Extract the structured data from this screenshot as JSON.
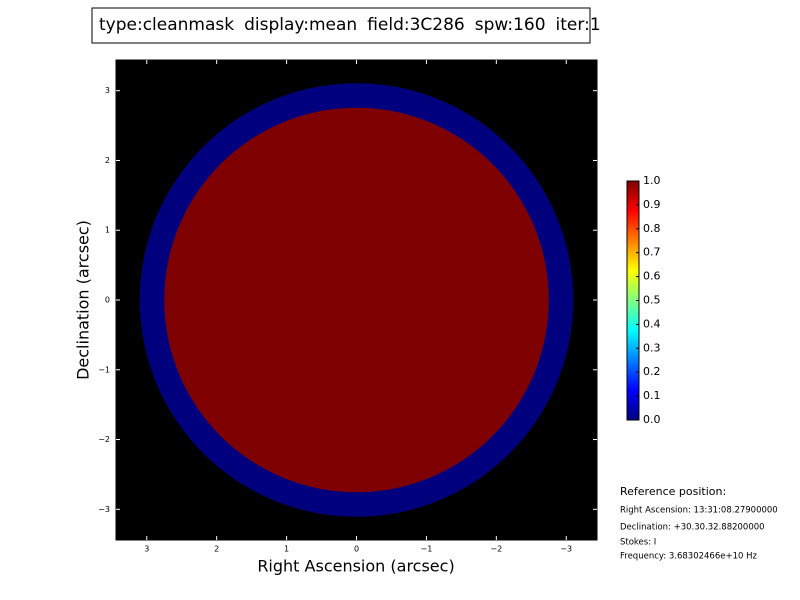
{
  "chart_data": {
    "type": "image",
    "title_parts": [
      {
        "text": "type:cleanmask",
        "color": "#000000"
      },
      {
        "text": "display:mean",
        "color": "#ff0000"
      },
      {
        "text": "field:3C286",
        "color": "#000000"
      },
      {
        "text": "spw:160",
        "color": "#000000"
      },
      {
        "text": "iter:1",
        "color": "#000000"
      }
    ],
    "xlabel": "Right Ascension (arcsec)",
    "ylabel": "Declination (arcsec)",
    "xlim": [
      3.44,
      -3.44
    ],
    "ylim": [
      -3.44,
      3.44
    ],
    "xticks": [
      3,
      2,
      1,
      0,
      {
        "value": -1,
        "label": "−1"
      },
      {
        "value": -2,
        "label": "−2"
      },
      {
        "value": -3,
        "label": "−3"
      }
    ],
    "yticks": [
      {
        "value": -3,
        "label": "−3"
      },
      {
        "value": -2,
        "label": "−2"
      },
      {
        "value": -1,
        "label": "−1"
      },
      0,
      1,
      2,
      3
    ],
    "background": "#000000",
    "regions": [
      {
        "radius": 3.1,
        "value": 0
      },
      {
        "radius": 2.75,
        "value": 1
      }
    ],
    "colormap": [
      "#00007f",
      "#0000ff",
      "#007fff",
      "#00ffff",
      "#7fff7f",
      "#ffff00",
      "#ff7f00",
      "#ff0000",
      "#7f0000"
    ],
    "clim": [
      0,
      1
    ],
    "cticks": [
      {
        "value": 0,
        "label": "0.0"
      },
      {
        "value": 0.1,
        "label": "0.1"
      },
      {
        "value": 0.2,
        "label": "0.2"
      },
      {
        "value": 0.3,
        "label": "0.3"
      },
      {
        "value": 0.4,
        "label": "0.4"
      },
      {
        "value": 0.5,
        "label": "0.5"
      },
      {
        "value": 0.6,
        "label": "0.6"
      },
      {
        "value": 0.7,
        "label": "0.7"
      },
      {
        "value": 0.8,
        "label": "0.8"
      },
      {
        "value": 0.9,
        "label": "0.9"
      },
      {
        "value": 1,
        "label": "1.0"
      }
    ],
    "reference": {
      "title": "Reference position:",
      "lines": [
        "Right Ascension: 13:31:08.27900000",
        "Declination: +30.30.32.88200000",
        "Stokes: I",
        "Frequency: 3.68302466e+10 Hz"
      ]
    }
  }
}
